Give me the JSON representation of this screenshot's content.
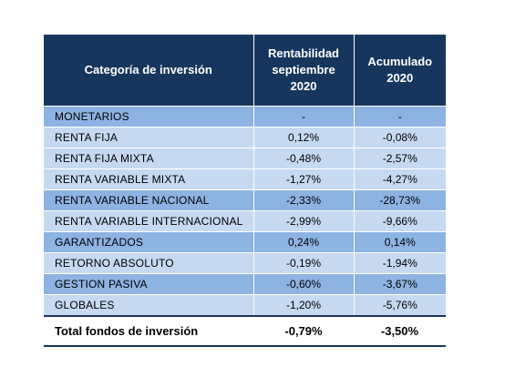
{
  "header": {
    "col1": "Categoría de inversión",
    "col2_line1": "Rentabilidad",
    "col2_line2": "septiembre",
    "col2_line3": "2020",
    "col3_line1": "Acumulado",
    "col3_line2": "2020"
  },
  "rows": [
    {
      "category": "MONETARIOS",
      "rentabilidad": "-",
      "acumulado": "-"
    },
    {
      "category": "RENTA FIJA",
      "rentabilidad": "0,12%",
      "acumulado": "-0,08%"
    },
    {
      "category": "RENTA FIJA MIXTA",
      "rentabilidad": "-0,48%",
      "acumulado": "-2,57%"
    },
    {
      "category": "RENTA VARIABLE MIXTA",
      "rentabilidad": "-1,27%",
      "acumulado": "-4,27%"
    },
    {
      "category": "RENTA VARIABLE NACIONAL",
      "rentabilidad": "-2,33%",
      "acumulado": "-28,73%"
    },
    {
      "category": "RENTA VARIABLE INTERNACIONAL",
      "rentabilidad": "-2,99%",
      "acumulado": "-9,66%"
    },
    {
      "category": "GARANTIZADOS",
      "rentabilidad": "0,24%",
      "acumulado": "0,14%"
    },
    {
      "category": "RETORNO ABSOLUTO",
      "rentabilidad": "-0,19%",
      "acumulado": "-1,94%"
    },
    {
      "category": "GESTION PASIVA",
      "rentabilidad": "-0,60%",
      "acumulado": "-3,67%"
    },
    {
      "category": "GLOBALES",
      "rentabilidad": "-1,20%",
      "acumulado": "-5,76%"
    }
  ],
  "total": {
    "category": "Total fondos de inversión",
    "rentabilidad": "-0,79%",
    "acumulado": "-3,50%"
  },
  "colors": {
    "header_bg": "#17365d",
    "row_dark": "#8db3e2",
    "row_light": "#c6d9f1"
  }
}
